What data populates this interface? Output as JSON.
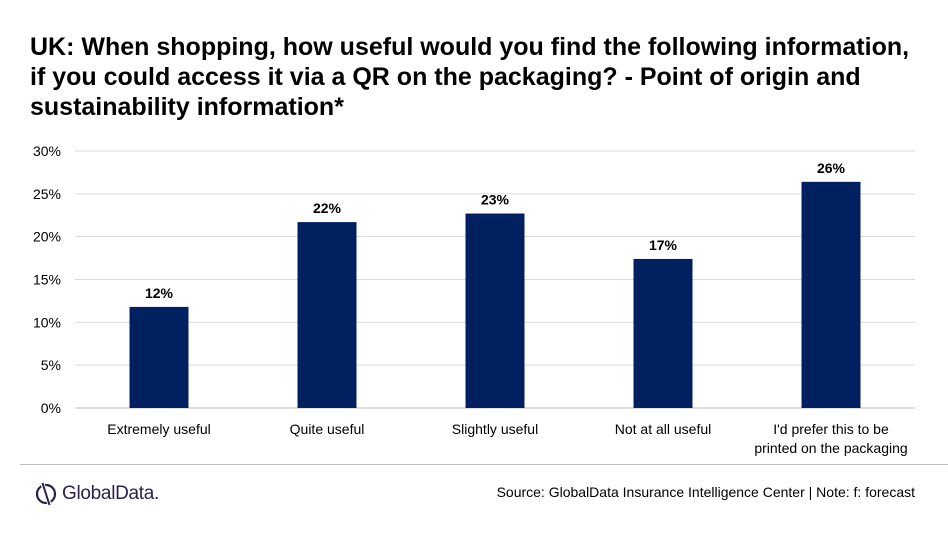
{
  "chart_data": {
    "type": "bar",
    "title": "UK: When shopping, how useful would you find the following information, if you could access it via a QR on the packaging? - Point of origin and sustainability information*",
    "categories": [
      "Extremely useful",
      "Quite useful",
      "Slightly useful",
      "Not at all useful",
      "I'd prefer this to be printed on the packaging"
    ],
    "values": [
      11.8,
      21.7,
      22.7,
      17.4,
      26.4
    ],
    "data_labels": [
      "12%",
      "22%",
      "23%",
      "17%",
      "26%"
    ],
    "yticks": [
      "0%",
      "5%",
      "10%",
      "15%",
      "20%",
      "25%",
      "30%"
    ],
    "ylim": [
      0,
      30
    ],
    "grid": true,
    "legend": "none",
    "bar_color": "#002060"
  },
  "footer": {
    "logo": "GlobalData.",
    "source": "Source: GlobalData Insurance Intelligence Center | Note: f: forecast"
  }
}
